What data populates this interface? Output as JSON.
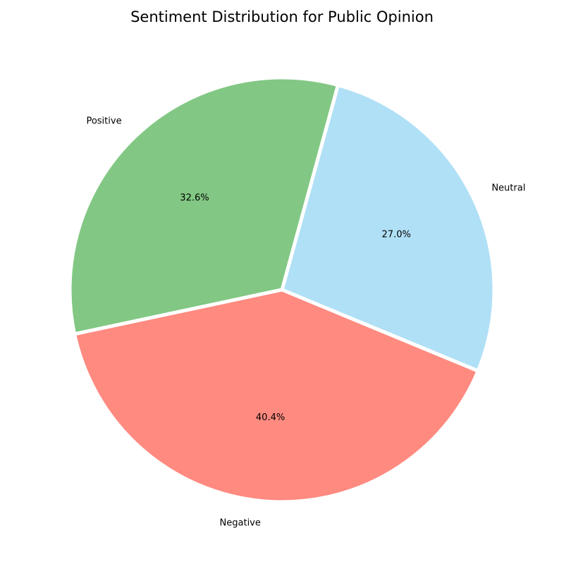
{
  "chart_data": {
    "type": "pie",
    "title": "Sentiment Distribution for Public Opinion",
    "categories": [
      "Neutral",
      "Positive",
      "Negative"
    ],
    "values": [
      27.0,
      32.6,
      40.4
    ],
    "percent_labels": [
      "27.0%",
      "32.6%",
      "40.4%"
    ],
    "colors": [
      "#b0e0f6",
      "#82c884",
      "#ff8a80"
    ],
    "start_angle_deg": -22.5,
    "direction": "counterclockwise",
    "legend": "none"
  }
}
